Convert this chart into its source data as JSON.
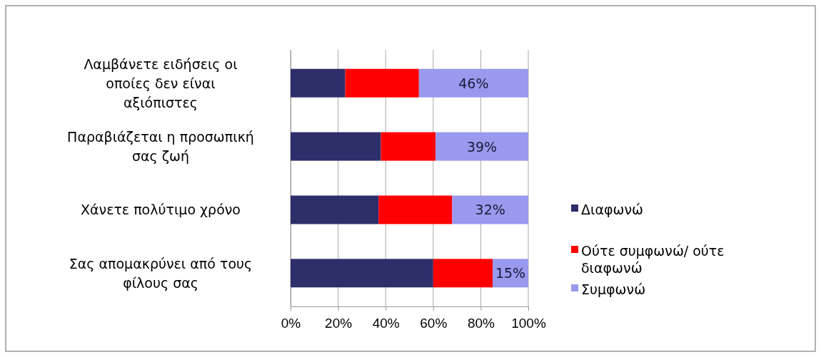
{
  "chart_data": {
    "type": "bar",
    "orientation": "horizontal",
    "stacked": true,
    "categories": [
      "Λαμβάνετε ειδήσεις οι οποίες δεν είναι αξιόπιστες",
      "Παραβιάζεται η προσωπική σας ζωή",
      "Χάνετε πολύτιμο χρόνο",
      "Σας απομακρύνει από τους φίλους σας"
    ],
    "series": [
      {
        "name": "Διαφωνώ",
        "color": "#2e2e6b",
        "values": [
          23,
          38,
          37,
          60
        ]
      },
      {
        "name": "Ούτε συμφωνώ/ ούτε διαφωνώ",
        "color": "#ff0000",
        "values": [
          31,
          23,
          31,
          25
        ]
      },
      {
        "name": "Συμφωνώ",
        "color": "#9999ee",
        "values": [
          46,
          39,
          32,
          15
        ],
        "value_labels": [
          "46%",
          "39%",
          "32%",
          "15%"
        ]
      }
    ],
    "xlim": [
      0,
      100
    ],
    "xticks": [
      {
        "value": 0,
        "label": "0%"
      },
      {
        "value": 20,
        "label": "20%"
      },
      {
        "value": 40,
        "label": "40%"
      },
      {
        "value": 60,
        "label": "60%"
      },
      {
        "value": 80,
        "label": "80%"
      },
      {
        "value": 100,
        "label": "100%"
      }
    ],
    "grid": "x",
    "legend": "right"
  }
}
